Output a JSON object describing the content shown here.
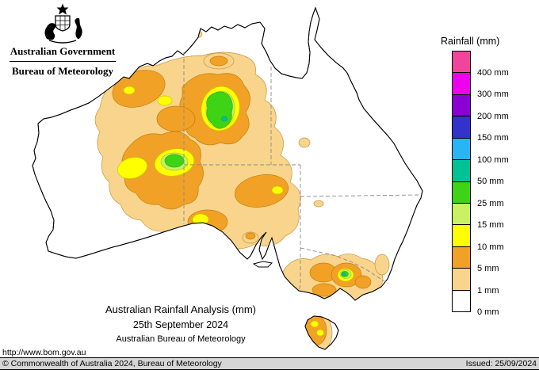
{
  "header": {
    "government": "Australian Government",
    "bureau": "Bureau of Meteorology"
  },
  "legend": {
    "title": "Rainfall (mm)",
    "entries": [
      {
        "label": "400 mm",
        "color": "#f0459c"
      },
      {
        "label": "300 mm",
        "color": "#ee00ee"
      },
      {
        "label": "200 mm",
        "color": "#8a00d4"
      },
      {
        "label": "150 mm",
        "color": "#3333cc"
      },
      {
        "label": "100 mm",
        "color": "#28b5f5"
      },
      {
        "label": "50 mm",
        "color": "#00c295"
      },
      {
        "label": "25 mm",
        "color": "#3ed314"
      },
      {
        "label": "15 mm",
        "color": "#c9f164"
      },
      {
        "label": "10 mm",
        "color": "#ffff00"
      },
      {
        "label": "5 mm",
        "color": "#f2a127"
      },
      {
        "label": "1 mm",
        "color": "#f8d48c"
      },
      {
        "label": "0 mm",
        "color": "#ffffff"
      }
    ]
  },
  "map": {
    "region": "Australia",
    "colors": {
      "mm1": "#f8d48c",
      "mm5": "#f2a127",
      "mm10": "#ffff00",
      "mm15": "#c9f164",
      "mm25": "#3ed314",
      "mm50": "#00c295"
    }
  },
  "caption": {
    "title": "Australian Rainfall Analysis (mm)",
    "date": "25th September 2024",
    "source": "Australian Bureau of Meteorology"
  },
  "footer": {
    "url": "http://www.bom.gov.au",
    "copyright": "© Commonwealth of Australia 2024, Bureau of Meteorology",
    "issued": "Issued: 25/09/2024"
  }
}
